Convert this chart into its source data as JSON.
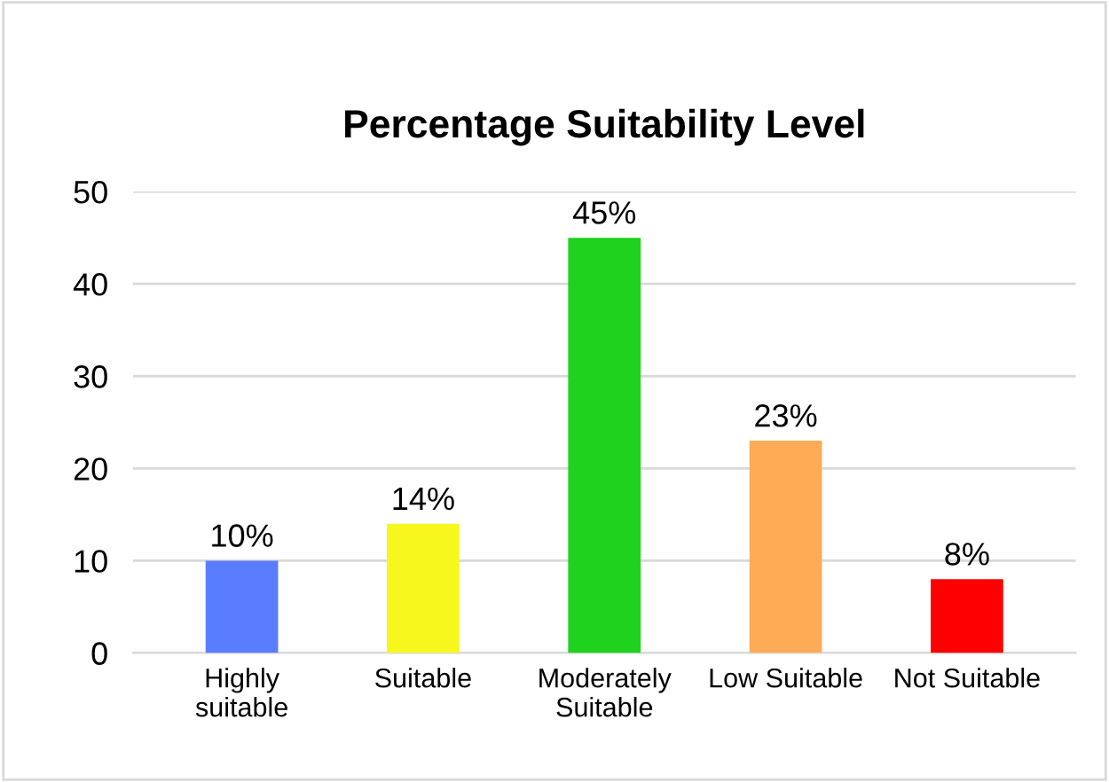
{
  "chart_data": {
    "type": "bar",
    "title": "Percentage Suitability Level",
    "categories": [
      "Highly\nsuitable",
      "Suitable",
      "Moderately\nSuitable",
      "Low Suitable",
      "Not Suitable"
    ],
    "values": [
      10,
      14,
      45,
      23,
      8
    ],
    "colors": [
      "#5a7cff",
      "#f7f71e",
      "#1ed21e",
      "#ffab55",
      "#ff0000"
    ],
    "value_labels": [
      "10%",
      "14%",
      "45%",
      "23%",
      "8%"
    ],
    "ylim": [
      0,
      50
    ],
    "yticks": [
      0,
      10,
      20,
      30,
      40,
      50
    ],
    "grid": "y",
    "legend": false
  }
}
